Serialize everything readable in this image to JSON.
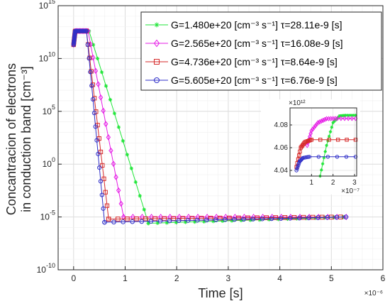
{
  "chart_data": [
    {
      "type": "line",
      "xlabel": "Time [s]",
      "ylabel_line1": "Concantracion of electrons",
      "ylabel_line2": "in conduction band [cm⁻³]",
      "x_exponent": "×10⁻⁶",
      "xlim": [
        -0.3,
        6
      ],
      "ylim_log10": [
        -10,
        15
      ],
      "y_scale": "log",
      "grid": true,
      "legend_position": "top-right",
      "xticks": [
        "0",
        "1",
        "2",
        "3",
        "4",
        "5",
        "6"
      ],
      "yticks": [
        {
          "base": "10",
          "exp": "15"
        },
        {
          "base": "10",
          "exp": "10"
        },
        {
          "base": "10",
          "exp": "5"
        },
        {
          "base": "10",
          "exp": "0"
        },
        {
          "base": "10",
          "exp": "-5"
        },
        {
          "base": "10",
          "exp": "-10"
        }
      ],
      "series": [
        {
          "name": "G=1.480e+20 [cm⁻³ s⁻¹] τ=28.11e-9 [s]",
          "color": "#22e63a",
          "marker": "star",
          "points": [
            [
              0,
              11.3
            ],
            [
              0.03,
              12.6
            ],
            [
              0.3,
              12.6
            ],
            [
              1.45,
              -5.6
            ],
            [
              5.3,
              -5.0
            ]
          ]
        },
        {
          "name": "G=2.565e+20 [cm⁻³ s⁻¹] τ=16.08e-9 [s]",
          "color": "#e61ee6",
          "marker": "diamond",
          "points": [
            [
              0,
              11.3
            ],
            [
              0.03,
              12.6
            ],
            [
              0.28,
              12.6
            ],
            [
              0.97,
              -5.0
            ],
            [
              5.3,
              -5.0
            ]
          ]
        },
        {
          "name": "G=4.736e+20 [cm⁻³ s⁻¹] τ=8.64e-9 [s]",
          "color": "#d62a2a",
          "marker": "square",
          "points": [
            [
              0,
              11.3
            ],
            [
              0.03,
              12.6
            ],
            [
              0.25,
              12.6
            ],
            [
              0.68,
              -5.2
            ],
            [
              5.3,
              -5.0
            ]
          ]
        },
        {
          "name": "G=5.605e+20 [cm⁻³ s⁻¹] τ=6.76e-9 [s]",
          "color": "#3030c8",
          "marker": "circle",
          "points": [
            [
              0,
              11.3
            ],
            [
              0.03,
              12.6
            ],
            [
              0.25,
              12.6
            ],
            [
              0.6,
              -5.5
            ],
            [
              5.3,
              -5.0
            ]
          ]
        }
      ]
    },
    {
      "type": "line",
      "inset": true,
      "y_exponent": "×10¹²",
      "x_exponent": "×10⁻⁷",
      "xlim": [
        0,
        3.1
      ],
      "ylim": [
        4.035,
        4.095
      ],
      "xticks": [
        "1",
        "2",
        "3"
      ],
      "yticks": [
        "4.08",
        "4.06",
        "4.04"
      ],
      "series": [
        {
          "name": "green",
          "color": "#22e63a",
          "marker": "star",
          "points": [
            [
              1.4,
              4.035
            ],
            [
              1.7,
              4.062
            ],
            [
              2.0,
              4.082
            ],
            [
              2.3,
              4.088
            ],
            [
              2.6,
              4.0885
            ],
            [
              3.05,
              4.0885
            ]
          ]
        },
        {
          "name": "magenta",
          "color": "#e61ee6",
          "marker": "diamond",
          "points": [
            [
              0.8,
              4.062
            ],
            [
              1.0,
              4.075
            ],
            [
              1.3,
              4.082
            ],
            [
              1.7,
              4.0855
            ],
            [
              2.2,
              4.0857
            ],
            [
              3.05,
              4.0857
            ]
          ]
        },
        {
          "name": "red",
          "color": "#d62a2a",
          "marker": "square",
          "points": [
            [
              0.3,
              4.043
            ],
            [
              0.5,
              4.06
            ],
            [
              0.7,
              4.065
            ],
            [
              1.0,
              4.067
            ],
            [
              3.05,
              4.067
            ]
          ]
        },
        {
          "name": "blue",
          "color": "#3030c8",
          "marker": "circle",
          "points": [
            [
              0.3,
              4.04
            ],
            [
              0.45,
              4.048
            ],
            [
              0.6,
              4.051
            ],
            [
              0.9,
              4.052
            ],
            [
              3.05,
              4.052
            ]
          ]
        }
      ]
    }
  ]
}
